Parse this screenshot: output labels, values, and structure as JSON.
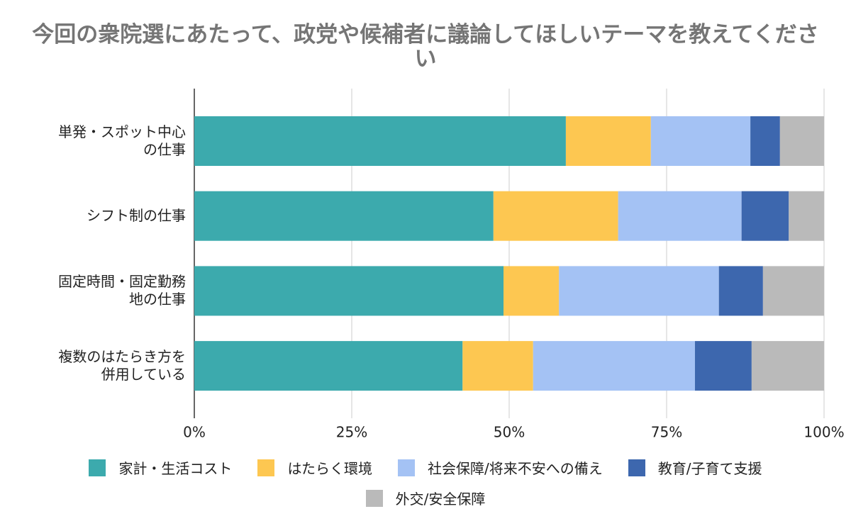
{
  "chart_data": {
    "type": "stacked_bar_horizontal",
    "title": "今回の衆院選にあたって、政党や候補者に議論してほしいテーマを教えてください",
    "categories": [
      "単発・スポット中心の仕事",
      "シフト制の仕事",
      "固定時間・固定勤務地の仕事",
      "複数のはたらき方を併用している"
    ],
    "series": [
      {
        "name": "家計・生活コスト",
        "color": "#3caaad",
        "values": [
          59.0,
          47.5,
          49.1,
          42.6
        ]
      },
      {
        "name": "はたらく環境",
        "color": "#fdc751",
        "values": [
          13.5,
          19.8,
          8.8,
          11.2
        ]
      },
      {
        "name": "社会保障/将来不安への備え",
        "color": "#a4c2f4",
        "values": [
          15.8,
          19.6,
          25.4,
          25.7
        ]
      },
      {
        "name": "教育/子育て支援",
        "color": "#3d67ae",
        "values": [
          4.7,
          7.5,
          7.0,
          9.0
        ]
      },
      {
        "name": "外交/安全保障",
        "color": "#bababa",
        "values": [
          7.0,
          5.6,
          9.7,
          11.5
        ]
      }
    ],
    "xlim": [
      0,
      100
    ],
    "xticks": [
      {
        "value": 0,
        "label": "0%"
      },
      {
        "value": 25,
        "label": "25%"
      },
      {
        "value": 50,
        "label": "50%"
      },
      {
        "value": 75,
        "label": "75%"
      },
      {
        "value": 100,
        "label": "100%"
      }
    ],
    "grid": true,
    "legend": "bottom"
  }
}
